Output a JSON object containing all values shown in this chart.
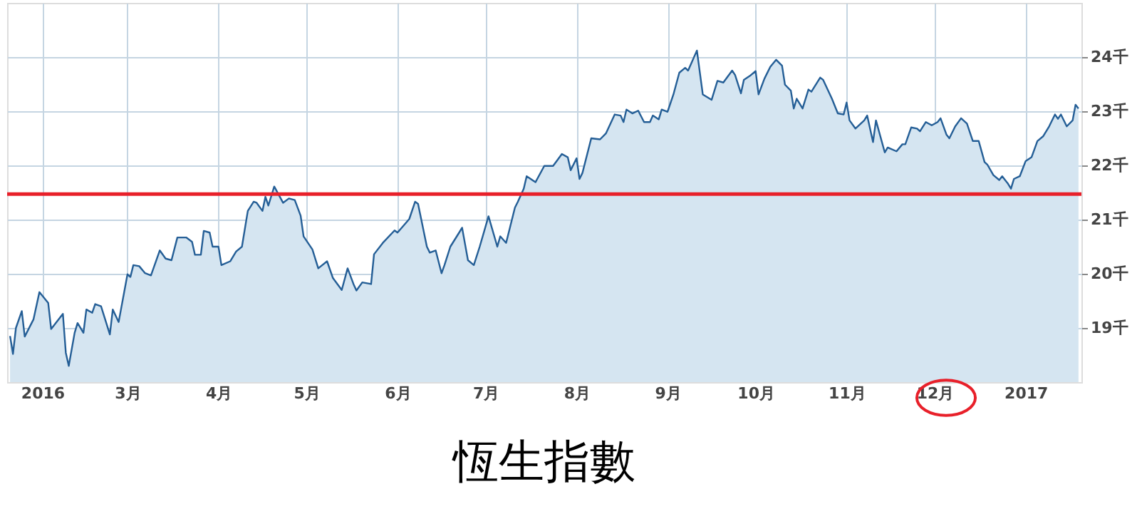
{
  "chart_data": {
    "type": "area",
    "title": "恆生指數",
    "x": [
      "2016-01-21",
      "2016-01-22",
      "2016-01-23",
      "2016-01-25",
      "2016-01-26",
      "2016-01-29",
      "2016-01-31",
      "2016-02-03",
      "2016-02-04",
      "2016-02-08",
      "2016-02-09",
      "2016-02-10",
      "2016-02-12",
      "2016-02-13",
      "2016-02-15",
      "2016-02-16",
      "2016-02-18",
      "2016-02-19",
      "2016-02-21",
      "2016-02-24",
      "2016-02-25",
      "2016-02-27",
      "2016-03-01",
      "2016-03-02",
      "2016-03-03",
      "2016-03-05",
      "2016-03-07",
      "2016-03-09",
      "2016-03-12",
      "2016-03-14",
      "2016-03-16",
      "2016-03-18",
      "2016-03-21",
      "2016-03-23",
      "2016-03-24",
      "2016-03-26",
      "2016-03-27",
      "2016-03-29",
      "2016-03-30",
      "2016-04-01",
      "2016-04-02",
      "2016-04-05",
      "2016-04-07",
      "2016-04-09",
      "2016-04-11",
      "2016-04-13",
      "2016-04-14",
      "2016-04-16",
      "2016-04-17",
      "2016-04-18",
      "2016-04-20",
      "2016-04-23",
      "2016-04-25",
      "2016-04-27",
      "2016-04-29",
      "2016-04-30",
      "2016-05-03",
      "2016-05-05",
      "2016-05-08",
      "2016-05-10",
      "2016-05-13",
      "2016-05-15",
      "2016-05-17",
      "2016-05-18",
      "2016-05-20",
      "2016-05-23",
      "2016-05-24",
      "2016-05-27",
      "2016-05-31",
      "2016-06-01",
      "2016-06-05",
      "2016-06-07",
      "2016-06-08",
      "2016-06-11",
      "2016-06-12",
      "2016-06-14",
      "2016-06-16",
      "2016-06-17",
      "2016-06-19",
      "2016-06-22",
      "2016-06-23",
      "2016-06-25",
      "2016-06-27",
      "2016-06-29",
      "2016-07-02",
      "2016-07-05",
      "2016-07-06",
      "2016-07-08",
      "2016-07-11",
      "2016-07-12",
      "2016-07-14",
      "2016-07-15",
      "2016-07-18",
      "2016-07-21",
      "2016-07-24",
      "2016-07-27",
      "2016-07-29",
      "2016-07-30",
      "2016-08-01",
      "2016-08-02",
      "2016-08-03",
      "2016-08-06",
      "2016-08-09",
      "2016-08-11",
      "2016-08-14",
      "2016-08-16",
      "2016-08-17",
      "2016-08-18",
      "2016-08-20",
      "2016-08-22",
      "2016-08-24",
      "2016-08-26",
      "2016-08-27",
      "2016-08-29",
      "2016-08-30",
      "2016-09-01",
      "2016-09-03",
      "2016-09-05",
      "2016-09-07",
      "2016-09-08",
      "2016-09-11",
      "2016-09-13",
      "2016-09-16",
      "2016-09-18",
      "2016-09-20",
      "2016-09-23",
      "2016-09-24",
      "2016-09-26",
      "2016-09-27",
      "2016-09-29",
      "2016-10-01",
      "2016-10-02",
      "2016-10-04",
      "2016-10-06",
      "2016-10-08",
      "2016-10-10",
      "2016-10-11",
      "2016-10-13",
      "2016-10-14",
      "2016-10-15",
      "2016-10-17",
      "2016-10-19",
      "2016-10-20",
      "2016-10-23",
      "2016-10-24",
      "2016-10-27",
      "2016-10-29",
      "2016-10-31",
      "2016-11-01",
      "2016-11-02",
      "2016-11-04",
      "2016-11-07",
      "2016-11-08",
      "2016-11-10",
      "2016-11-11",
      "2016-11-14",
      "2016-11-15",
      "2016-11-18",
      "2016-11-20",
      "2016-11-21",
      "2016-11-23",
      "2016-11-25",
      "2016-11-26",
      "2016-11-28",
      "2016-11-30",
      "2016-12-02",
      "2016-12-03",
      "2016-12-05",
      "2016-12-06",
      "2016-12-08",
      "2016-12-10",
      "2016-12-12",
      "2016-12-14",
      "2016-12-16",
      "2016-12-18",
      "2016-12-19",
      "2016-12-21",
      "2016-12-23",
      "2016-12-24",
      "2016-12-26",
      "2016-12-27",
      "2016-12-28",
      "2016-12-30",
      "2017-01-01",
      "2017-01-03",
      "2017-01-05",
      "2017-01-07",
      "2017-01-09",
      "2017-01-11",
      "2017-01-12",
      "2017-01-13",
      "2017-01-15",
      "2017-01-17",
      "2017-01-18",
      "2017-01-19"
    ],
    "series": [
      {
        "color": "#245e96",
        "values": [
          18.85,
          18.52,
          19.0,
          19.31,
          18.84,
          19.16,
          19.66,
          19.46,
          18.98,
          19.26,
          18.54,
          18.3,
          18.91,
          19.09,
          18.91,
          19.34,
          19.28,
          19.44,
          19.4,
          18.88,
          19.34,
          19.11,
          19.99,
          19.94,
          20.16,
          20.14,
          20.01,
          19.97,
          20.43,
          20.28,
          20.25,
          20.67,
          20.67,
          20.59,
          20.35,
          20.35,
          20.79,
          20.76,
          20.5,
          20.5,
          20.16,
          20.23,
          20.41,
          20.5,
          21.16,
          21.33,
          21.31,
          21.16,
          21.42,
          21.26,
          21.61,
          21.31,
          21.39,
          21.36,
          21.07,
          20.69,
          20.45,
          20.1,
          20.23,
          19.92,
          19.7,
          20.1,
          19.81,
          19.69,
          19.84,
          19.81,
          20.36,
          20.57,
          20.8,
          20.76,
          21.01,
          21.33,
          21.29,
          20.5,
          20.39,
          20.43,
          20.01,
          20.16,
          20.5,
          20.76,
          20.85,
          20.25,
          20.16,
          20.5,
          21.06,
          20.5,
          20.69,
          20.57,
          21.22,
          21.33,
          21.57,
          21.8,
          21.69,
          21.99,
          21.99,
          22.21,
          22.15,
          21.91,
          22.13,
          21.75,
          21.86,
          22.5,
          22.48,
          22.59,
          22.94,
          22.92,
          22.8,
          23.03,
          22.96,
          23.01,
          22.8,
          22.8,
          22.92,
          22.85,
          23.03,
          22.99,
          23.31,
          23.71,
          23.8,
          23.75,
          24.12,
          23.31,
          23.21,
          23.56,
          23.53,
          23.75,
          23.67,
          23.33,
          23.58,
          23.65,
          23.74,
          23.31,
          23.6,
          23.82,
          23.95,
          23.84,
          23.49,
          23.38,
          23.05,
          23.23,
          23.05,
          23.4,
          23.36,
          23.62,
          23.58,
          23.23,
          22.96,
          22.94,
          23.16,
          22.83,
          22.68,
          22.83,
          22.92,
          22.43,
          22.83,
          22.24,
          22.33,
          22.26,
          22.39,
          22.39,
          22.7,
          22.68,
          22.63,
          22.8,
          22.74,
          22.8,
          22.87,
          22.57,
          22.5,
          22.72,
          22.87,
          22.77,
          22.45,
          22.45,
          22.06,
          22.01,
          21.82,
          21.73,
          21.8,
          21.66,
          21.57,
          21.75,
          21.8,
          22.08,
          22.15,
          22.45,
          22.54,
          22.72,
          22.94,
          22.86,
          22.94,
          22.72,
          22.83,
          23.12,
          23.05
        ]
      }
    ],
    "xlim": [
      "2016-01-20",
      "2017-01-20"
    ],
    "xticks": [
      {
        "value": "2016-02-01",
        "label": "2016"
      },
      {
        "value": "2016-03-01",
        "label": "3月"
      },
      {
        "value": "2016-04-01",
        "label": "4月"
      },
      {
        "value": "2016-05-01",
        "label": "5月"
      },
      {
        "value": "2016-06-01",
        "label": "6月"
      },
      {
        "value": "2016-07-01",
        "label": "7月"
      },
      {
        "value": "2016-08-01",
        "label": "8月"
      },
      {
        "value": "2016-09-01",
        "label": "9月"
      },
      {
        "value": "2016-10-01",
        "label": "10月"
      },
      {
        "value": "2016-11-01",
        "label": "11月"
      },
      {
        "value": "2016-12-01",
        "label": "12月"
      },
      {
        "value": "2017-01-01",
        "label": "2017"
      }
    ],
    "ylim": [
      18,
      25
    ],
    "yticks": [
      {
        "value": 19,
        "label": "19千"
      },
      {
        "value": 20,
        "label": "20千"
      },
      {
        "value": 21,
        "label": "21千"
      },
      {
        "value": 22,
        "label": "22千"
      },
      {
        "value": 23,
        "label": "23千"
      },
      {
        "value": 24,
        "label": "24千"
      }
    ],
    "ref_lines": [
      {
        "axis": "y",
        "value": 21.47,
        "color": "#e8202a"
      }
    ],
    "grid": true
  }
}
